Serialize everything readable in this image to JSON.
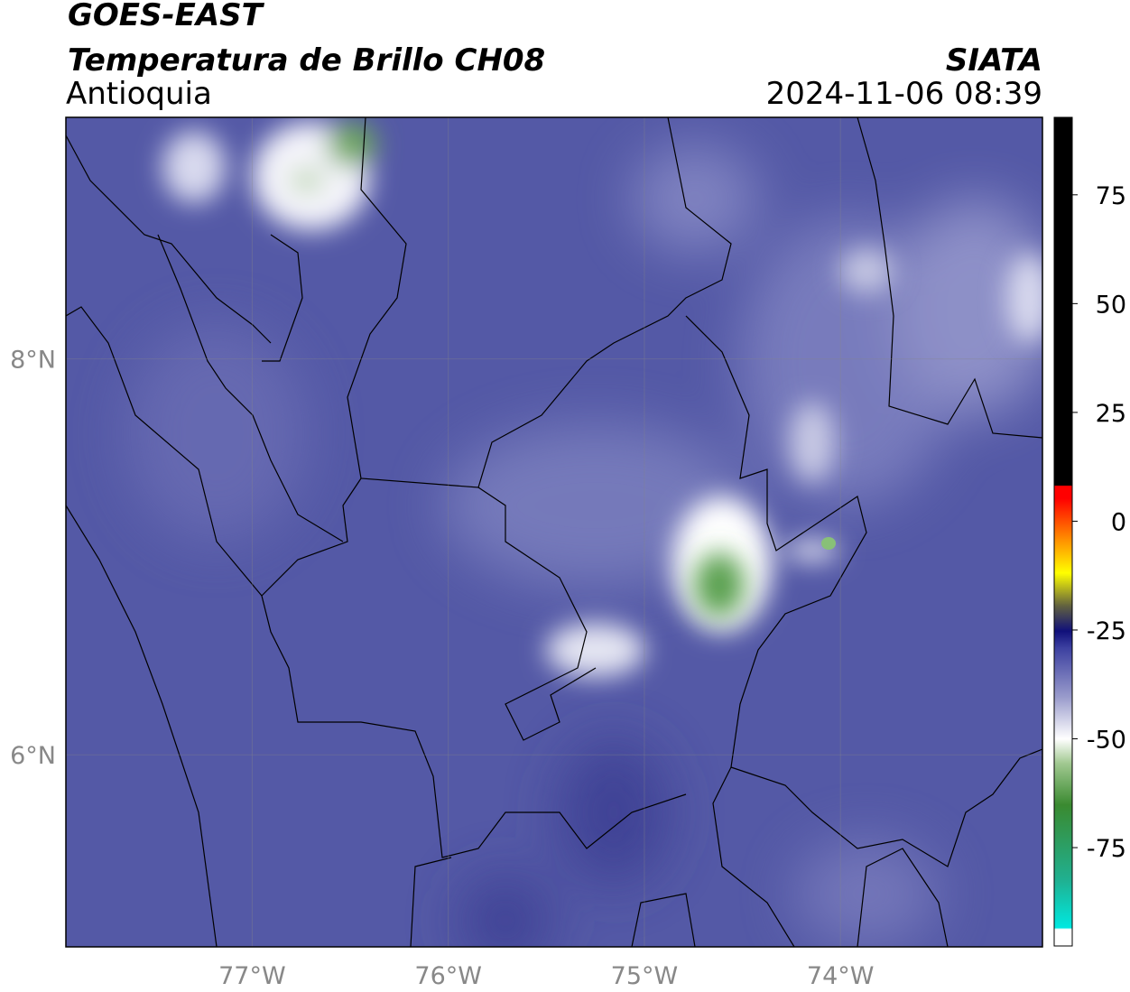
{
  "header": {
    "title": "GOES-EAST",
    "subtitle": "Temperatura de Brillo CH08",
    "region": "Antioquia",
    "source": "SIATA",
    "datetime": "2024-11-06 08:39"
  },
  "map": {
    "xlim": [
      -77.95,
      -72.97
    ],
    "ylim": [
      5.03,
      9.22
    ],
    "xticks": [
      {
        "value": -77,
        "label": "77°W"
      },
      {
        "value": -76,
        "label": "76°W"
      },
      {
        "value": -75,
        "label": "75°W"
      },
      {
        "value": -74,
        "label": "74°W"
      }
    ],
    "yticks": [
      {
        "value": 6,
        "label": "6°N"
      },
      {
        "value": 8,
        "label": "8°N"
      }
    ],
    "grid": true
  },
  "colorbar": {
    "lim": [
      -97.6,
      92.8
    ],
    "ticks": [
      -75,
      -50,
      -25,
      0,
      25,
      50,
      75
    ]
  }
}
